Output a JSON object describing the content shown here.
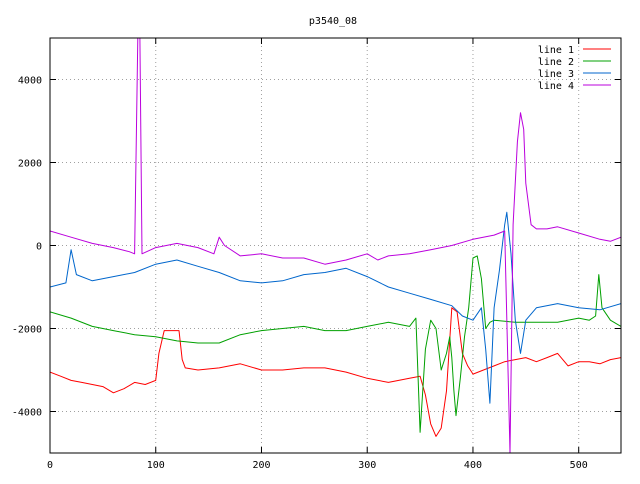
{
  "chart_data": {
    "type": "line",
    "title": "p3540_08",
    "xlabel": "",
    "ylabel": "",
    "xlim": [
      0,
      540
    ],
    "ylim": [
      -5000,
      5000
    ],
    "xticks": [
      0,
      100,
      200,
      300,
      400,
      500
    ],
    "yticks": [
      -4000,
      -2000,
      0,
      2000,
      4000
    ],
    "grid": true,
    "legend_position": "top-right",
    "series": [
      {
        "name": "line 1",
        "color": "#ff0000",
        "points": [
          [
            0,
            -3050
          ],
          [
            10,
            -3150
          ],
          [
            20,
            -3250
          ],
          [
            30,
            -3300
          ],
          [
            40,
            -3350
          ],
          [
            50,
            -3400
          ],
          [
            60,
            -3550
          ],
          [
            70,
            -3450
          ],
          [
            80,
            -3300
          ],
          [
            90,
            -3350
          ],
          [
            100,
            -3250
          ],
          [
            103,
            -2600
          ],
          [
            108,
            -2050
          ],
          [
            115,
            -2050
          ],
          [
            122,
            -2050
          ],
          [
            125,
            -2750
          ],
          [
            128,
            -2950
          ],
          [
            140,
            -3000
          ],
          [
            160,
            -2950
          ],
          [
            180,
            -2850
          ],
          [
            200,
            -3000
          ],
          [
            220,
            -3000
          ],
          [
            240,
            -2950
          ],
          [
            260,
            -2950
          ],
          [
            280,
            -3050
          ],
          [
            300,
            -3200
          ],
          [
            320,
            -3300
          ],
          [
            340,
            -3200
          ],
          [
            350,
            -3150
          ],
          [
            355,
            -3600
          ],
          [
            360,
            -4300
          ],
          [
            365,
            -4600
          ],
          [
            370,
            -4400
          ],
          [
            375,
            -3500
          ],
          [
            380,
            -1500
          ],
          [
            385,
            -1600
          ],
          [
            390,
            -2600
          ],
          [
            395,
            -2900
          ],
          [
            400,
            -3100
          ],
          [
            410,
            -3000
          ],
          [
            420,
            -2900
          ],
          [
            430,
            -2800
          ],
          [
            440,
            -2750
          ],
          [
            450,
            -2700
          ],
          [
            460,
            -2800
          ],
          [
            470,
            -2700
          ],
          [
            480,
            -2600
          ],
          [
            490,
            -2900
          ],
          [
            500,
            -2800
          ],
          [
            510,
            -2800
          ],
          [
            520,
            -2850
          ],
          [
            530,
            -2750
          ],
          [
            540,
            -2700
          ]
        ]
      },
      {
        "name": "line 2",
        "color": "#00a000",
        "points": [
          [
            0,
            -1600
          ],
          [
            20,
            -1750
          ],
          [
            40,
            -1950
          ],
          [
            60,
            -2050
          ],
          [
            80,
            -2150
          ],
          [
            100,
            -2200
          ],
          [
            120,
            -2300
          ],
          [
            140,
            -2350
          ],
          [
            160,
            -2350
          ],
          [
            180,
            -2150
          ],
          [
            200,
            -2050
          ],
          [
            220,
            -2000
          ],
          [
            240,
            -1950
          ],
          [
            260,
            -2050
          ],
          [
            280,
            -2050
          ],
          [
            300,
            -1950
          ],
          [
            320,
            -1850
          ],
          [
            340,
            -1950
          ],
          [
            346,
            -1750
          ],
          [
            350,
            -4500
          ],
          [
            355,
            -2500
          ],
          [
            360,
            -1800
          ],
          [
            365,
            -2000
          ],
          [
            370,
            -3000
          ],
          [
            375,
            -2600
          ],
          [
            378,
            -2200
          ],
          [
            380,
            -2700
          ],
          [
            382,
            -3500
          ],
          [
            384,
            -4100
          ],
          [
            388,
            -3200
          ],
          [
            392,
            -2200
          ],
          [
            396,
            -1500
          ],
          [
            400,
            -300
          ],
          [
            404,
            -250
          ],
          [
            408,
            -800
          ],
          [
            412,
            -2000
          ],
          [
            416,
            -1850
          ],
          [
            420,
            -1800
          ],
          [
            440,
            -1850
          ],
          [
            460,
            -1850
          ],
          [
            480,
            -1850
          ],
          [
            500,
            -1750
          ],
          [
            510,
            -1800
          ],
          [
            516,
            -1700
          ],
          [
            519,
            -700
          ],
          [
            522,
            -1500
          ],
          [
            530,
            -1800
          ],
          [
            540,
            -1950
          ]
        ]
      },
      {
        "name": "line 3",
        "color": "#0066cc",
        "points": [
          [
            0,
            -1000
          ],
          [
            15,
            -900
          ],
          [
            20,
            -100
          ],
          [
            25,
            -700
          ],
          [
            40,
            -850
          ],
          [
            60,
            -750
          ],
          [
            80,
            -650
          ],
          [
            100,
            -450
          ],
          [
            120,
            -350
          ],
          [
            140,
            -500
          ],
          [
            160,
            -650
          ],
          [
            180,
            -850
          ],
          [
            200,
            -900
          ],
          [
            220,
            -850
          ],
          [
            240,
            -700
          ],
          [
            260,
            -650
          ],
          [
            280,
            -550
          ],
          [
            300,
            -750
          ],
          [
            320,
            -1000
          ],
          [
            340,
            -1150
          ],
          [
            360,
            -1300
          ],
          [
            380,
            -1450
          ],
          [
            390,
            -1700
          ],
          [
            400,
            -1800
          ],
          [
            408,
            -1500
          ],
          [
            412,
            -2500
          ],
          [
            416,
            -3800
          ],
          [
            420,
            -1500
          ],
          [
            425,
            -600
          ],
          [
            430,
            500
          ],
          [
            432,
            800
          ],
          [
            436,
            -200
          ],
          [
            440,
            -1800
          ],
          [
            445,
            -2600
          ],
          [
            450,
            -1800
          ],
          [
            460,
            -1500
          ],
          [
            480,
            -1400
          ],
          [
            500,
            -1500
          ],
          [
            520,
            -1550
          ],
          [
            540,
            -1400
          ]
        ]
      },
      {
        "name": "line 4",
        "color": "#bb00dd",
        "points": [
          [
            0,
            350
          ],
          [
            20,
            200
          ],
          [
            40,
            50
          ],
          [
            60,
            -50
          ],
          [
            75,
            -150
          ],
          [
            80,
            -200
          ],
          [
            83,
            5000
          ],
          [
            85,
            5000
          ],
          [
            87,
            -200
          ],
          [
            100,
            -50
          ],
          [
            120,
            50
          ],
          [
            140,
            -50
          ],
          [
            155,
            -200
          ],
          [
            160,
            200
          ],
          [
            165,
            0
          ],
          [
            180,
            -250
          ],
          [
            200,
            -200
          ],
          [
            220,
            -300
          ],
          [
            240,
            -300
          ],
          [
            260,
            -450
          ],
          [
            280,
            -350
          ],
          [
            300,
            -200
          ],
          [
            310,
            -350
          ],
          [
            320,
            -250
          ],
          [
            340,
            -200
          ],
          [
            360,
            -100
          ],
          [
            380,
            0
          ],
          [
            400,
            150
          ],
          [
            420,
            250
          ],
          [
            430,
            350
          ],
          [
            435,
            -5000
          ],
          [
            438,
            500
          ],
          [
            442,
            2500
          ],
          [
            445,
            3200
          ],
          [
            448,
            2800
          ],
          [
            450,
            1500
          ],
          [
            455,
            500
          ],
          [
            460,
            400
          ],
          [
            470,
            400
          ],
          [
            480,
            450
          ],
          [
            500,
            300
          ],
          [
            520,
            150
          ],
          [
            530,
            100
          ],
          [
            540,
            200
          ]
        ]
      }
    ]
  }
}
